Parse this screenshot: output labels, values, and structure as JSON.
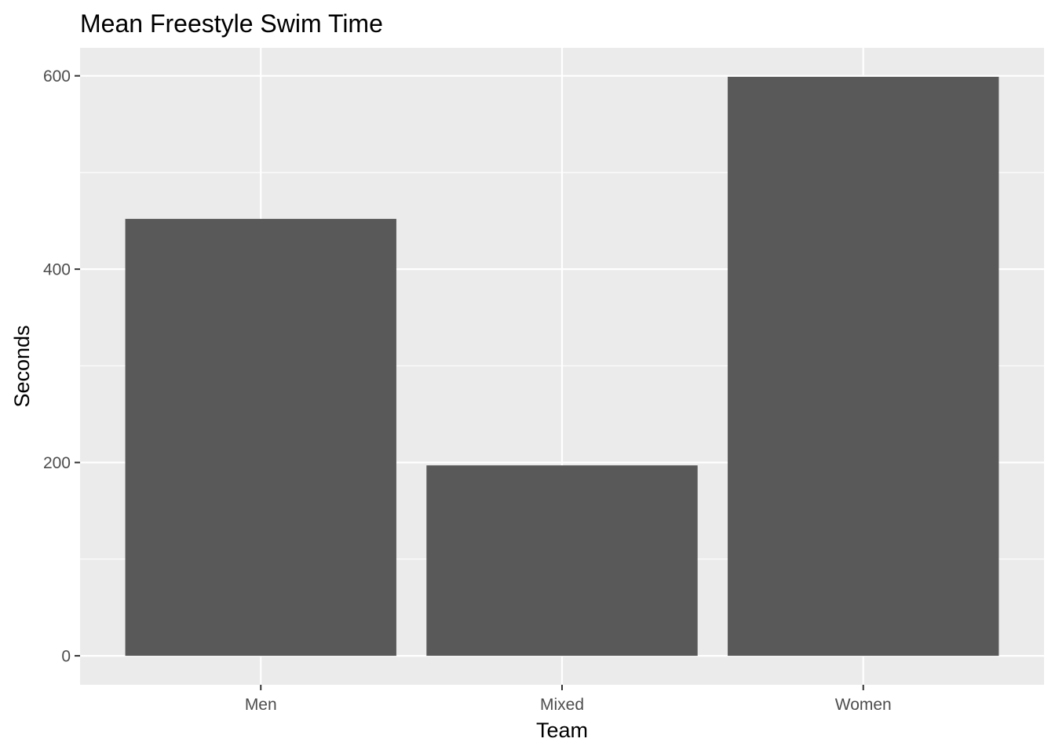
{
  "chart_data": {
    "type": "bar",
    "title": "Mean Freestyle Swim Time",
    "xlabel": "Team",
    "ylabel": "Seconds",
    "categories": [
      "Men",
      "Mixed",
      "Women"
    ],
    "values": [
      452,
      197,
      599
    ],
    "ylim": [
      -29.95,
      628.95
    ],
    "y_ticks": [
      0,
      200,
      400,
      600
    ],
    "y_tick_labels": [
      "0",
      "200",
      "400",
      "600"
    ],
    "y_minor_ticks": [
      100,
      300,
      500
    ],
    "grid": true,
    "legend": "none",
    "colors": {
      "bar": "#595959",
      "panel": "#ebebeb",
      "grid": "#ffffff",
      "tick_text": "#4d4d4d",
      "axis_ticks": "#333333",
      "title_text": "#000000"
    }
  }
}
